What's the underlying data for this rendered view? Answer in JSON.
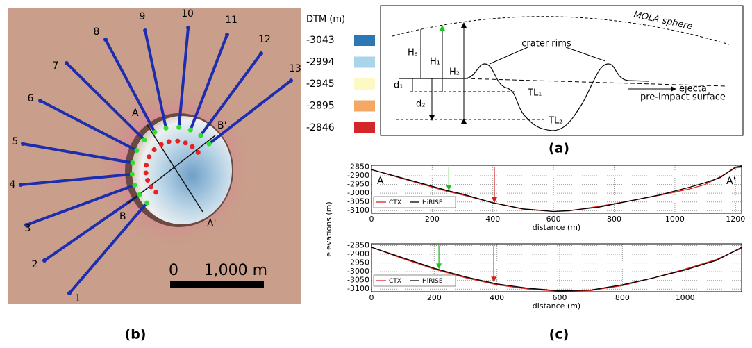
{
  "map": {
    "caption": "(b)",
    "profiles": [
      "1",
      "2",
      "3",
      "4",
      "5",
      "6",
      "7",
      "8",
      "9",
      "10",
      "11",
      "12",
      "13"
    ],
    "section_labels": [
      "A",
      "B'",
      "B",
      "A'"
    ],
    "scale_bar": {
      "start": "0",
      "end": "1,000 m"
    },
    "legend": {
      "title": "DTM (m)",
      "items": [
        {
          "value": -3043,
          "color": "#2c77b4"
        },
        {
          "value": -2994,
          "color": "#a9d4e9"
        },
        {
          "value": -2945,
          "color": "#fcf9c4"
        },
        {
          "value": -2895,
          "color": "#f5a865"
        },
        {
          "value": -2846,
          "color": "#d4262a"
        }
      ]
    }
  },
  "diagram": {
    "caption": "(a)",
    "labels": {
      "sphere": "MOLA sphere",
      "rims": "crater rims",
      "ejecta": "ejecta",
      "surface": "pre-impact surface",
      "hs": "Hₛ",
      "h1": "H₁",
      "h2": "H₂",
      "d1": "d₁",
      "d2": "d₂",
      "tl1": "TL₁",
      "tl2": "TL₂"
    }
  },
  "profiles_panel": {
    "caption": "(c)",
    "y_label": "elevations (m)"
  },
  "chart_data": [
    {
      "type": "line",
      "x_label": "distance (m)",
      "end_labels": [
        "A",
        "A'"
      ],
      "x": [
        0,
        100,
        200,
        250,
        300,
        400,
        500,
        600,
        650,
        750,
        850,
        950,
        1050,
        1100,
        1150,
        1200,
        1220
      ],
      "series": [
        {
          "name": "CTX",
          "color": "#e0201b",
          "values": [
            -2865,
            -2915,
            -2965,
            -2990,
            -3010,
            -3055,
            -3092,
            -3105,
            -3102,
            -3075,
            -3045,
            -3012,
            -2975,
            -2950,
            -2905,
            -2855,
            -2850
          ]
        },
        {
          "name": "HiRISE",
          "color": "#000000",
          "values": [
            -2865,
            -2912,
            -2960,
            -2985,
            -3005,
            -3055,
            -3090,
            -3105,
            -3100,
            -3080,
            -3045,
            -3010,
            -2965,
            -2940,
            -2910,
            -2850,
            -2845
          ]
        }
      ],
      "arrows": [
        {
          "x": 255,
          "y": [
            -2850,
            -2985
          ],
          "color": "#22c022"
        },
        {
          "x": 405,
          "y": [
            -2850,
            -3055
          ],
          "color": "#d42020"
        }
      ],
      "xlim": [
        0,
        1220
      ],
      "ylim": [
        -3115,
        -2840
      ],
      "xticks": [
        0,
        200,
        400,
        600,
        800,
        1000,
        1200
      ],
      "yticks": [
        -2850,
        -2900,
        -2950,
        -3000,
        -3050,
        -3100
      ],
      "grid": true
    },
    {
      "type": "line",
      "x_label": "distance (m)",
      "x": [
        0,
        100,
        200,
        300,
        400,
        500,
        600,
        700,
        800,
        900,
        1000,
        1100,
        1180
      ],
      "series": [
        {
          "name": "CTX",
          "color": "#e0201b",
          "values": [
            -2860,
            -2925,
            -2985,
            -3035,
            -3075,
            -3100,
            -3112,
            -3108,
            -3080,
            -3035,
            -2985,
            -2930,
            -2865
          ]
        },
        {
          "name": "HiRISE",
          "color": "#000000",
          "values": [
            -2860,
            -2920,
            -2980,
            -3030,
            -3070,
            -3095,
            -3110,
            -3105,
            -3075,
            -3035,
            -2990,
            -2935,
            -2860
          ]
        }
      ],
      "arrows": [
        {
          "x": 215,
          "y": [
            -2850,
            -2985
          ],
          "color": "#22c022"
        },
        {
          "x": 390,
          "y": [
            -2850,
            -3060
          ],
          "color": "#d42020"
        }
      ],
      "xlim": [
        0,
        1180
      ],
      "ylim": [
        -3115,
        -2840
      ],
      "xticks": [
        0,
        200,
        400,
        600,
        800,
        1000
      ],
      "yticks": [
        -2850,
        -2900,
        -2950,
        -3000,
        -3050,
        -3100
      ],
      "grid": true
    }
  ]
}
